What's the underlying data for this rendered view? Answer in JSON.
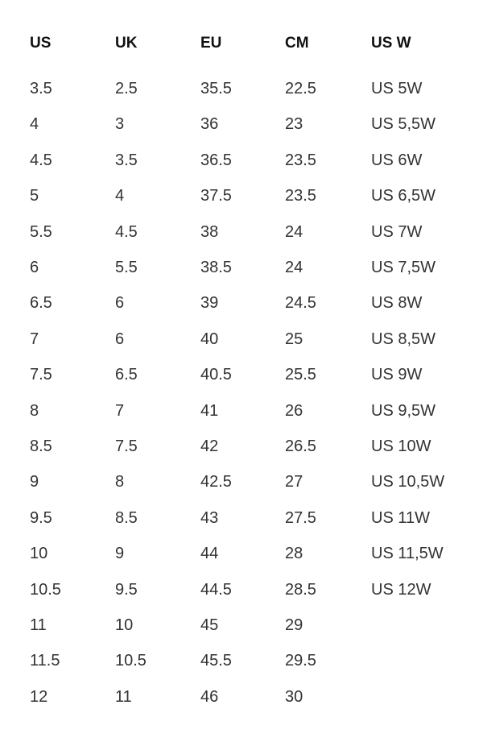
{
  "table": {
    "headers": [
      "US",
      "UK",
      "EU",
      "CM",
      "US W"
    ],
    "rows": [
      [
        "3.5",
        "2.5",
        "35.5",
        "22.5",
        "US 5W"
      ],
      [
        "4",
        "3",
        "36",
        "23",
        "US 5,5W"
      ],
      [
        "4.5",
        "3.5",
        "36.5",
        "23.5",
        "US 6W"
      ],
      [
        "5",
        "4",
        "37.5",
        "23.5",
        "US 6,5W"
      ],
      [
        "5.5",
        "4.5",
        "38",
        "24",
        "US 7W"
      ],
      [
        "6",
        "5.5",
        "38.5",
        "24",
        "US 7,5W"
      ],
      [
        "6.5",
        "6",
        "39",
        "24.5",
        "US 8W"
      ],
      [
        "7",
        "6",
        "40",
        "25",
        "US 8,5W"
      ],
      [
        "7.5",
        "6.5",
        "40.5",
        "25.5",
        "US 9W"
      ],
      [
        "8",
        "7",
        "41",
        "26",
        "US 9,5W"
      ],
      [
        "8.5",
        "7.5",
        "42",
        "26.5",
        "US 10W"
      ],
      [
        "9",
        "8",
        "42.5",
        "27",
        "US 10,5W"
      ],
      [
        "9.5",
        "8.5",
        "43",
        "27.5",
        "US 11W"
      ],
      [
        "10",
        "9",
        "44",
        "28",
        "US 11,5W"
      ],
      [
        "10.5",
        "9.5",
        "44.5",
        "28.5",
        "US 12W"
      ],
      [
        "11",
        "10",
        "45",
        "29",
        ""
      ],
      [
        "11.5",
        "10.5",
        "45.5",
        "29.5",
        ""
      ],
      [
        "12",
        "11",
        "46",
        "30",
        ""
      ]
    ]
  }
}
